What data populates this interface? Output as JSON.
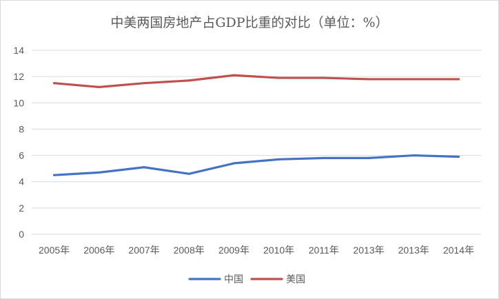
{
  "chart_data": {
    "type": "line",
    "title": "中美两国房地产占GDP比重的对比（单位：%）",
    "xlabel": "",
    "ylabel": "",
    "categories": [
      "2005年",
      "2006年",
      "2007年",
      "2008年",
      "2009年",
      "2010年",
      "2011年",
      "2013年",
      "2013年",
      "2014年"
    ],
    "ylim": [
      0,
      14
    ],
    "yticks": [
      0,
      2,
      4,
      6,
      8,
      10,
      12,
      14
    ],
    "grid": true,
    "legend": "bottom",
    "series": [
      {
        "name": "中国",
        "color": "#4472C4",
        "values": [
          4.5,
          4.7,
          5.1,
          4.6,
          5.4,
          5.7,
          5.8,
          5.8,
          6.0,
          5.9
        ]
      },
      {
        "name": "美国",
        "color": "#C0504D",
        "values": [
          11.5,
          11.2,
          11.5,
          11.7,
          12.1,
          11.9,
          11.9,
          11.8,
          11.8,
          11.8
        ]
      }
    ]
  }
}
